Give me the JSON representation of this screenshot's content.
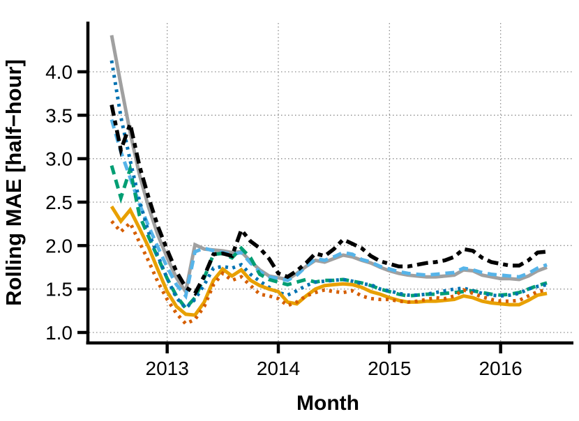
{
  "chart_data": {
    "type": "line",
    "title": "",
    "xlabel": "Month",
    "ylabel": "Rolling MAE [half−hour]",
    "x_tick_labels": [
      "2013",
      "2014",
      "2015",
      "2016"
    ],
    "y_tick_labels": [
      "1.0",
      "1.5",
      "2.0",
      "2.5",
      "3.0",
      "3.5",
      "4.0"
    ],
    "ylim": [
      0.9,
      4.56
    ],
    "x_range": [
      "2012-07",
      "2016-06"
    ],
    "grid": "dotted",
    "legend": "none",
    "grid_color": "#8C8C8C",
    "axis_color": "#000000",
    "months": [
      "2012-07",
      "2012-08",
      "2012-09",
      "2012-10",
      "2012-11",
      "2012-12",
      "2013-01",
      "2013-02",
      "2013-03",
      "2013-04",
      "2013-05",
      "2013-06",
      "2013-07",
      "2013-08",
      "2013-09",
      "2013-10",
      "2013-11",
      "2013-12",
      "2014-01",
      "2014-02",
      "2014-03",
      "2014-04",
      "2014-05",
      "2014-06",
      "2014-07",
      "2014-08",
      "2014-09",
      "2014-10",
      "2014-11",
      "2014-12",
      "2015-01",
      "2015-02",
      "2015-03",
      "2015-04",
      "2015-05",
      "2015-06",
      "2015-07",
      "2015-08",
      "2015-09",
      "2015-10",
      "2015-11",
      "2015-12",
      "2016-01",
      "2016-02",
      "2016-03",
      "2016-04",
      "2016-05",
      "2016-06"
    ],
    "series": [
      {
        "name": "gray-solid",
        "color": "#A0A0A0",
        "linetype": "solid",
        "width": 5,
        "values": [
          4.42,
          3.85,
          3.3,
          2.82,
          2.44,
          2.12,
          1.86,
          1.63,
          1.47,
          2.01,
          1.96,
          1.95,
          1.94,
          1.92,
          1.93,
          1.82,
          1.72,
          1.65,
          1.63,
          1.61,
          1.68,
          1.76,
          1.83,
          1.81,
          1.85,
          1.89,
          1.87,
          1.83,
          1.8,
          1.75,
          1.71,
          1.68,
          1.66,
          1.65,
          1.64,
          1.64,
          1.65,
          1.66,
          1.72,
          1.71,
          1.66,
          1.64,
          1.62,
          1.62,
          1.61,
          1.65,
          1.71,
          1.75
        ]
      },
      {
        "name": "skyblue-dashed",
        "color": "#56B4E9",
        "linetype": "dashed",
        "width": 5,
        "values": [
          3.45,
          3.08,
          2.78,
          2.48,
          2.22,
          1.98,
          1.75,
          1.55,
          1.42,
          1.93,
          1.97,
          1.94,
          1.92,
          1.9,
          1.92,
          1.8,
          1.7,
          1.64,
          1.62,
          1.6,
          1.66,
          1.76,
          1.85,
          1.83,
          1.87,
          1.92,
          1.9,
          1.84,
          1.81,
          1.76,
          1.73,
          1.7,
          1.68,
          1.67,
          1.66,
          1.67,
          1.68,
          1.69,
          1.74,
          1.72,
          1.69,
          1.67,
          1.66,
          1.65,
          1.64,
          1.68,
          1.74,
          1.78
        ]
      },
      {
        "name": "green-dashed",
        "color": "#009E73",
        "linetype": "dashed",
        "width": 5,
        "values": [
          2.92,
          2.55,
          2.88,
          2.35,
          2.1,
          1.86,
          1.62,
          1.42,
          1.28,
          1.4,
          1.63,
          1.9,
          1.91,
          1.86,
          1.97,
          1.86,
          1.67,
          1.61,
          1.58,
          1.55,
          1.58,
          1.61,
          1.58,
          1.6,
          1.6,
          1.61,
          1.59,
          1.57,
          1.54,
          1.5,
          1.47,
          1.44,
          1.42,
          1.43,
          1.44,
          1.44,
          1.45,
          1.46,
          1.47,
          1.48,
          1.46,
          1.44,
          1.43,
          1.44,
          1.46,
          1.5,
          1.54,
          1.57
        ]
      },
      {
        "name": "blue-dotted",
        "color": "#0072B2",
        "linetype": "dotted",
        "width": 5,
        "values": [
          4.13,
          3.48,
          2.98,
          2.52,
          2.15,
          1.88,
          1.62,
          1.4,
          1.28,
          1.38,
          1.55,
          1.74,
          1.76,
          1.74,
          1.78,
          1.67,
          1.59,
          1.52,
          1.46,
          1.43,
          1.48,
          1.54,
          1.58,
          1.59,
          1.6,
          1.61,
          1.59,
          1.56,
          1.55,
          1.5,
          1.48,
          1.45,
          1.43,
          1.43,
          1.44,
          1.46,
          1.48,
          1.5,
          1.51,
          1.48,
          1.45,
          1.43,
          1.42,
          1.43,
          1.45,
          1.5,
          1.53,
          1.55
        ]
      },
      {
        "name": "amber-solid",
        "color": "#E8A000",
        "linetype": "solid",
        "width": 5,
        "values": [
          2.45,
          2.28,
          2.41,
          2.2,
          1.98,
          1.72,
          1.47,
          1.3,
          1.21,
          1.2,
          1.35,
          1.6,
          1.73,
          1.65,
          1.72,
          1.6,
          1.54,
          1.5,
          1.47,
          1.35,
          1.33,
          1.42,
          1.5,
          1.54,
          1.55,
          1.56,
          1.55,
          1.52,
          1.47,
          1.44,
          1.4,
          1.37,
          1.35,
          1.35,
          1.36,
          1.36,
          1.37,
          1.38,
          1.42,
          1.4,
          1.36,
          1.34,
          1.33,
          1.32,
          1.32,
          1.37,
          1.43,
          1.45
        ]
      },
      {
        "name": "vermillion-dotted",
        "color": "#D55E00",
        "linetype": "dotted",
        "width": 5,
        "values": [
          2.28,
          2.16,
          2.26,
          2.04,
          1.82,
          1.58,
          1.38,
          1.22,
          1.1,
          1.15,
          1.3,
          1.55,
          1.68,
          1.6,
          1.64,
          1.54,
          1.44,
          1.42,
          1.39,
          1.31,
          1.35,
          1.42,
          1.46,
          1.49,
          1.47,
          1.46,
          1.48,
          1.42,
          1.39,
          1.38,
          1.38,
          1.36,
          1.35,
          1.36,
          1.38,
          1.4,
          1.39,
          1.42,
          1.49,
          1.45,
          1.41,
          1.38,
          1.36,
          1.36,
          1.37,
          1.42,
          1.47,
          1.49
        ]
      },
      {
        "name": "black-longdash",
        "color": "#000000",
        "linetype": "longdash",
        "width": 5.5,
        "values": [
          3.62,
          3.1,
          3.4,
          2.92,
          2.55,
          2.22,
          1.95,
          1.7,
          1.52,
          1.45,
          1.65,
          1.9,
          1.91,
          1.88,
          2.18,
          2.05,
          1.97,
          1.85,
          1.68,
          1.64,
          1.71,
          1.8,
          1.91,
          1.88,
          1.96,
          2.07,
          2.02,
          1.97,
          1.88,
          1.82,
          1.79,
          1.76,
          1.76,
          1.78,
          1.8,
          1.81,
          1.83,
          1.87,
          1.96,
          1.94,
          1.86,
          1.81,
          1.79,
          1.77,
          1.77,
          1.83,
          1.92,
          1.93
        ]
      }
    ]
  }
}
